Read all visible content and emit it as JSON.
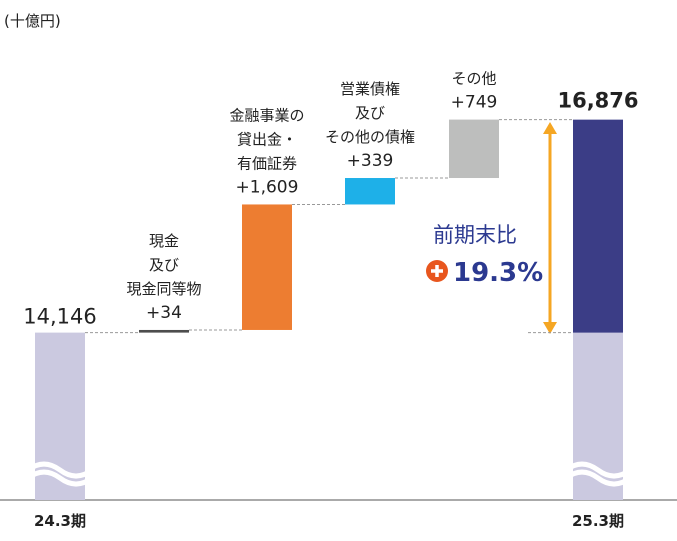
{
  "chart_data": {
    "type": "waterfall",
    "unit": "(十億円)",
    "categories": [
      "24.3期",
      "現金\n及び\n現金同等物",
      "金融事業の\n貸出金・\n有価証券",
      "営業債権\n及び\nその他の債権",
      "その他",
      "25.3期"
    ],
    "measure": [
      "absolute",
      "relative",
      "relative",
      "relative",
      "relative",
      "total"
    ],
    "values": [
      14146,
      34,
      1609,
      339,
      749,
      16876
    ],
    "value_labels": [
      "14,146",
      "+34",
      "+1,609",
      "+339",
      "+749",
      "16,876"
    ],
    "colors": [
      "#cbc9e0",
      "#4d4d4d",
      "#ed7d31",
      "#1eb0e8",
      "#bdbebd",
      "#3b3d86"
    ],
    "total_base_color": "#cbc9e0",
    "ylim": [
      12000,
      17000
    ],
    "annotation": "前期末比",
    "annotation_value": "19.3%"
  }
}
